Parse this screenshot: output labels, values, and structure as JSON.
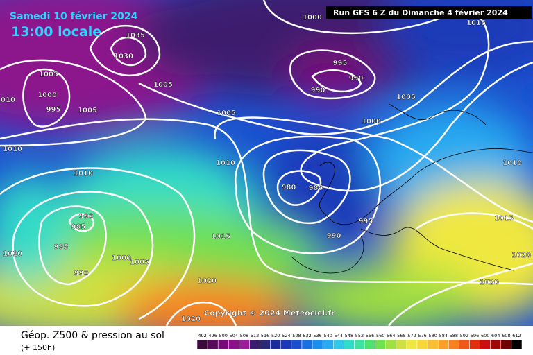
{
  "header": {
    "date": "Samedi 10 février 2024",
    "time": "13:00 locale",
    "run": "Run GFS 6 Z du Dimanche 4 février 2024"
  },
  "footer": {
    "title": "Géop. Z500 & pression au sol",
    "lead": "(+ 150h)",
    "copyright": "Copyright © 2024 Meteociel.fr"
  },
  "isobar_labels": [
    "1000",
    "1015",
    "1035",
    "1030",
    "1005",
    "1005",
    "995",
    "990",
    "990",
    "1005",
    "1000",
    "995",
    "1005",
    "1005",
    "1000",
    "1010",
    "1010",
    "1010",
    "1010",
    "980",
    "985",
    "995",
    "1015",
    "990",
    "985",
    "995",
    "990",
    "1015",
    "1010",
    "1000",
    "1005",
    "1020",
    "990",
    "1020",
    "1020",
    "1020",
    "1010"
  ],
  "scale": {
    "values": [
      492,
      496,
      500,
      504,
      508,
      512,
      516,
      520,
      524,
      528,
      532,
      536,
      540,
      544,
      548,
      552,
      556,
      560,
      564,
      568,
      572,
      576,
      580,
      584,
      588,
      592,
      596,
      600,
      604,
      608,
      612
    ],
    "colors": [
      "#3a0a3a",
      "#5a0a5a",
      "#7a0a7a",
      "#8c128c",
      "#9c1c9c",
      "#3c1e6e",
      "#2a2a78",
      "#1a2a9a",
      "#1a3ab8",
      "#1a50d0",
      "#1a70e0",
      "#1a8ff0",
      "#28aaf0",
      "#30c8e8",
      "#30dcc8",
      "#40e0a0",
      "#50e070",
      "#70e050",
      "#a0e040",
      "#d0e040",
      "#f0e840",
      "#f8d838",
      "#f8c030",
      "#f8a028",
      "#f88020",
      "#f05818",
      "#e03010",
      "#c81010",
      "#a00808",
      "#700404",
      "#000000"
    ]
  }
}
